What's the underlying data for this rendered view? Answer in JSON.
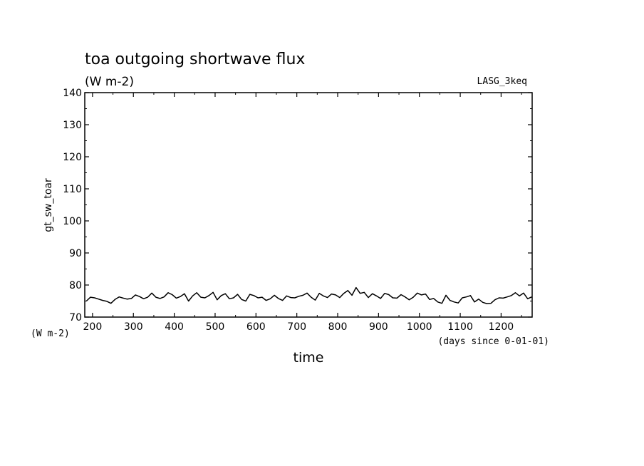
{
  "chart_data": {
    "type": "line",
    "title": "toa outgoing shortwave flux",
    "subtitle": "(W m-2)",
    "run_label": "LASG_3keq",
    "ylabel": "gt_sw_toar",
    "y_units": "(W m-2)",
    "xlabel": "time",
    "x_units": "(days since 0-01-01)",
    "xlim": [
      181,
      1276
    ],
    "ylim": [
      70,
      140
    ],
    "x_ticks": [
      200,
      300,
      400,
      500,
      600,
      700,
      800,
      900,
      1000,
      1100,
      1200
    ],
    "y_ticks": [
      70,
      80,
      90,
      100,
      110,
      120,
      130,
      140
    ],
    "grid": false,
    "series": [
      {
        "x": [
          185,
          195,
          205,
          215,
          225,
          235,
          245,
          255,
          265,
          275,
          285,
          295,
          305,
          315,
          325,
          335,
          345,
          355,
          365,
          375,
          385,
          395,
          405,
          415,
          425,
          435,
          445,
          455,
          465,
          475,
          485,
          495,
          505,
          515,
          525,
          535,
          545,
          555,
          565,
          575,
          585,
          595,
          605,
          615,
          625,
          635,
          645,
          655,
          665,
          675,
          685,
          695,
          705,
          715,
          725,
          735,
          745,
          755,
          765,
          775,
          785,
          795,
          805,
          815,
          825,
          835,
          845,
          855,
          865,
          875,
          885,
          895,
          905,
          915,
          925,
          935,
          945,
          955,
          965,
          975,
          985,
          995,
          1005,
          1015,
          1025,
          1035,
          1045,
          1055,
          1065,
          1075,
          1085,
          1095,
          1105,
          1115,
          1125,
          1135,
          1145,
          1155,
          1165,
          1175,
          1185,
          1195,
          1205,
          1215,
          1225,
          1235,
          1245,
          1255,
          1265,
          1275
        ],
        "y": [
          75.0,
          76.2,
          76.0,
          75.6,
          75.2,
          74.9,
          74.3,
          75.5,
          76.3,
          75.9,
          75.6,
          75.8,
          76.9,
          76.4,
          75.7,
          76.2,
          77.5,
          76.2,
          75.8,
          76.3,
          77.6,
          77.0,
          75.9,
          76.4,
          77.3,
          75.0,
          76.6,
          77.6,
          76.2,
          76.0,
          76.7,
          77.7,
          75.4,
          76.7,
          77.3,
          75.7,
          76.0,
          77.1,
          75.5,
          75.0,
          77.1,
          76.7,
          76.0,
          76.2,
          75.2,
          75.7,
          76.8,
          75.8,
          75.2,
          76.6,
          76.1,
          76.0,
          76.5,
          76.8,
          77.5,
          76.2,
          75.3,
          77.4,
          76.6,
          76.1,
          77.2,
          76.9,
          76.1,
          77.4,
          78.3,
          76.8,
          79.2,
          77.4,
          77.7,
          76.1,
          77.3,
          76.6,
          75.8,
          77.4,
          77.0,
          76.0,
          75.9,
          77.0,
          76.3,
          75.4,
          76.2,
          77.5,
          76.9,
          77.2,
          75.5,
          75.8,
          74.7,
          74.3,
          76.8,
          75.2,
          74.7,
          74.4,
          76.0,
          76.3,
          76.7,
          74.7,
          75.6,
          74.6,
          74.2,
          74.3,
          75.4,
          76.0,
          75.9,
          76.3,
          76.7,
          77.6,
          76.6,
          77.5,
          75.7,
          76.3
        ]
      }
    ]
  }
}
